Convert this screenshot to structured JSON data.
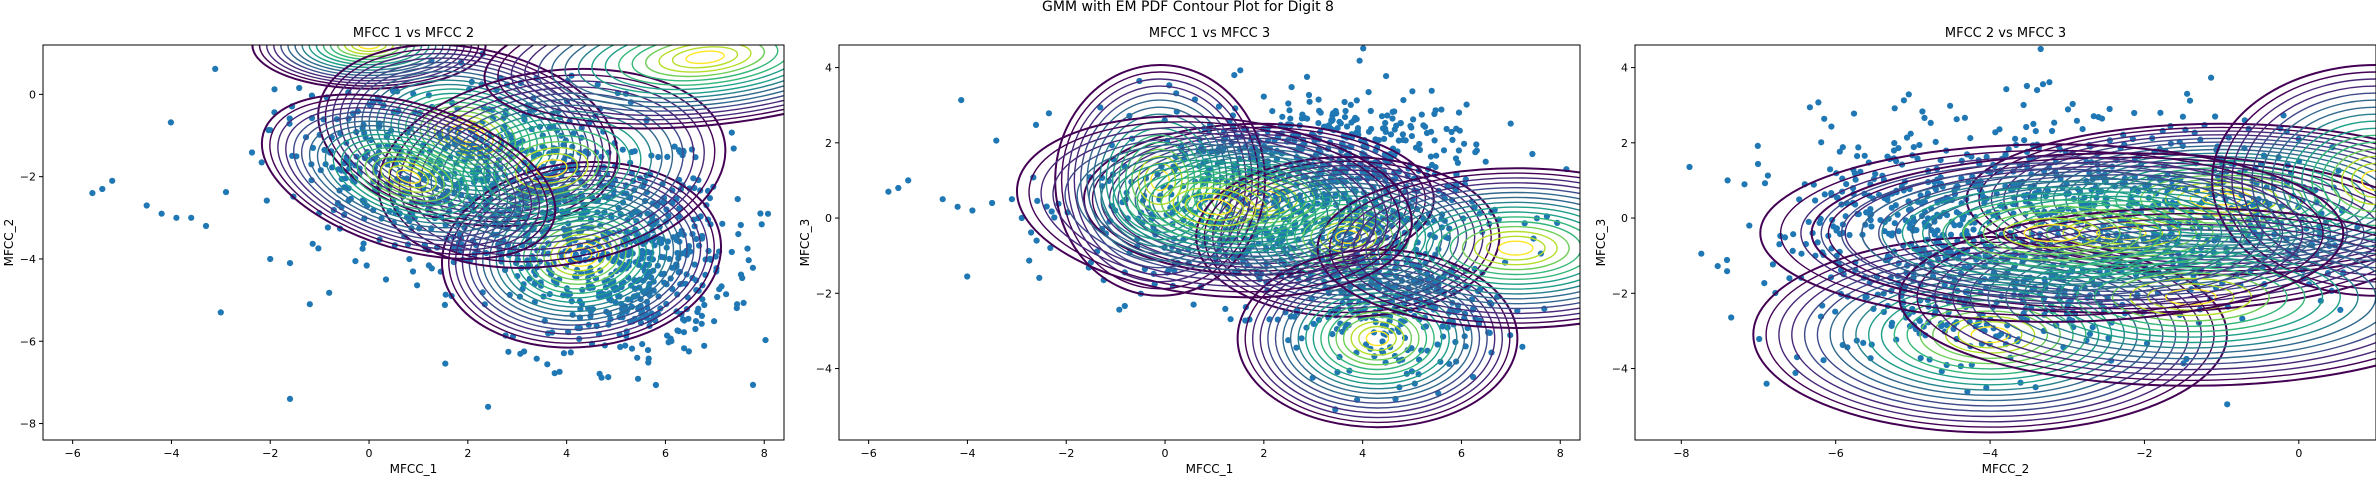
{
  "suptitle": "GMM with EM PDF Contour Plot for Digit 8",
  "colors": {
    "points": "#1f77b4",
    "viridis": [
      "#440154",
      "#482878",
      "#3e4a89",
      "#31688e",
      "#26828e",
      "#1f9e89",
      "#35b779",
      "#6ece58",
      "#b5de2b",
      "#fde725"
    ]
  },
  "chart_data": [
    {
      "type": "scatter",
      "title": "MFCC 1 vs MFCC 2",
      "xlabel": "MFCC_1",
      "ylabel": "MFCC_2",
      "xlim": [
        -6.6,
        8.4
      ],
      "ylim": [
        -8.4,
        1.2
      ],
      "xticks": [
        -6,
        -4,
        -2,
        0,
        2,
        4,
        6,
        8
      ],
      "yticks": [
        -8,
        -6,
        -4,
        -2,
        0
      ],
      "outliers": [
        [
          -5.2,
          -2.1
        ],
        [
          -5.6,
          -2.4
        ],
        [
          -5.4,
          -2.3
        ],
        [
          -4.5,
          -2.7
        ],
        [
          -4.2,
          -2.9
        ],
        [
          -3.9,
          -3.0
        ],
        [
          -3.0,
          -5.3
        ],
        [
          -2.0,
          -4.0
        ],
        [
          -1.6,
          -4.1
        ],
        [
          -1.2,
          -5.1
        ],
        [
          -1.6,
          -7.4
        ],
        [
          -3.6,
          -3.0
        ],
        [
          -3.3,
          -3.2
        ]
      ],
      "cloud": [
        {
          "mx": 3.5,
          "my": -2.6,
          "sx": 1.9,
          "sy": 1.4,
          "r": -0.35,
          "n": 700
        },
        {
          "mx": 5.3,
          "my": -4.6,
          "sx": 1.0,
          "sy": 1.0,
          "r": 0.2,
          "n": 300
        },
        {
          "mx": 0.5,
          "my": -2.0,
          "sx": 1.2,
          "sy": 0.8,
          "r": -0.4,
          "n": 160
        }
      ],
      "components": [
        {
          "mx": 0.0,
          "my": 1.2,
          "sx": 1.0,
          "sy": 0.45,
          "r": 0.0,
          "k": 16
        },
        {
          "mx": 2.0,
          "my": -1.0,
          "sx": 1.3,
          "sy": 0.9,
          "r": -0.2,
          "k": 20
        },
        {
          "mx": 4.3,
          "my": -3.9,
          "sx": 1.2,
          "sy": 0.95,
          "r": 0.1,
          "k": 20
        },
        {
          "mx": 3.7,
          "my": -1.8,
          "sx": 1.5,
          "sy": 1.0,
          "r": 0.15,
          "k": 16
        },
        {
          "mx": 0.8,
          "my": -2.0,
          "sx": 1.3,
          "sy": 0.75,
          "r": -0.3,
          "k": 18
        },
        {
          "mx": 6.8,
          "my": 0.9,
          "sx": 1.9,
          "sy": 0.7,
          "r": 0.1,
          "k": 16
        }
      ]
    },
    {
      "type": "scatter",
      "title": "MFCC 1 vs MFCC 3",
      "xlabel": "MFCC_1",
      "ylabel": "MFCC_3",
      "xlim": [
        -6.6,
        8.4
      ],
      "ylim": [
        -5.9,
        4.6
      ],
      "xticks": [
        -6,
        -4,
        -2,
        0,
        2,
        4,
        6,
        8
      ],
      "yticks": [
        -4,
        -2,
        0,
        2,
        4
      ],
      "outliers": [
        [
          -5.2,
          1.0
        ],
        [
          -5.6,
          0.7
        ],
        [
          -5.4,
          0.8
        ],
        [
          -4.5,
          0.5
        ],
        [
          -4.2,
          0.3
        ],
        [
          -3.9,
          0.2
        ],
        [
          -3.5,
          0.4
        ],
        [
          -3.1,
          0.5
        ],
        [
          -2.6,
          -0.6
        ],
        [
          -2.9,
          0.0
        ]
      ],
      "cloud": [
        {
          "mx": 2.3,
          "my": 0.4,
          "sx": 1.9,
          "sy": 1.3,
          "r": 0.0,
          "n": 650
        },
        {
          "mx": 4.5,
          "my": -1.8,
          "sx": 1.0,
          "sy": 1.2,
          "r": -0.2,
          "n": 330
        },
        {
          "mx": 3.5,
          "my": 2.0,
          "sx": 1.4,
          "sy": 0.7,
          "r": 0.0,
          "n": 180
        }
      ],
      "components": [
        {
          "mx": 1.9,
          "my": 0.5,
          "sx": 1.5,
          "sy": 0.85,
          "r": 0.0,
          "k": 20
        },
        {
          "mx": -0.1,
          "my": 1.0,
          "sx": 0.9,
          "sy": 1.3,
          "r": 0.0,
          "k": 16
        },
        {
          "mx": 3.7,
          "my": -0.5,
          "sx": 1.3,
          "sy": 0.9,
          "r": 0.0,
          "k": 18
        },
        {
          "mx": 4.3,
          "my": -3.2,
          "sx": 1.2,
          "sy": 1.0,
          "r": 0.0,
          "k": 18
        },
        {
          "mx": 7.1,
          "my": -0.8,
          "sx": 1.7,
          "sy": 0.9,
          "r": 0.0,
          "k": 16
        },
        {
          "mx": 1.0,
          "my": 0.3,
          "sx": 1.7,
          "sy": 1.0,
          "r": -0.1,
          "k": 16
        }
      ]
    },
    {
      "type": "scatter",
      "title": "MFCC 2 vs MFCC 3",
      "xlabel": "MFCC_2",
      "ylabel": "MFCC_3",
      "xlim": [
        -8.6,
        1.0
      ],
      "ylim": [
        -5.9,
        4.6
      ],
      "xticks": [
        -8,
        -6,
        -4,
        -2,
        0
      ],
      "yticks": [
        -4,
        -2,
        0,
        2,
        4
      ],
      "outliers": [
        [
          -7.4,
          1.0
        ],
        [
          -6.6,
          -1.6
        ],
        [
          -6.5,
          -3.7
        ],
        [
          -6.4,
          0.9
        ]
      ],
      "cloud": [
        {
          "mx": -2.6,
          "my": 0.2,
          "sx": 1.8,
          "sy": 1.3,
          "r": 0.0,
          "n": 750
        },
        {
          "mx": -4.0,
          "my": -2.2,
          "sx": 1.2,
          "sy": 1.0,
          "r": 0.1,
          "n": 230
        },
        {
          "mx": -5.2,
          "my": 0.0,
          "sx": 0.8,
          "sy": 1.2,
          "r": 0.0,
          "n": 150
        }
      ],
      "components": [
        {
          "mx": -1.0,
          "my": 0.5,
          "sx": 1.4,
          "sy": 0.85,
          "r": 0.0,
          "k": 20
        },
        {
          "mx": -4.0,
          "my": -3.1,
          "sx": 1.3,
          "sy": 1.1,
          "r": 0.0,
          "k": 18
        },
        {
          "mx": -2.3,
          "my": -0.4,
          "sx": 1.7,
          "sy": 0.9,
          "r": 0.0,
          "k": 18
        },
        {
          "mx": 1.0,
          "my": 1.0,
          "sx": 0.9,
          "sy": 1.3,
          "r": 0.0,
          "k": 16
        },
        {
          "mx": -1.4,
          "my": -2.1,
          "sx": 1.6,
          "sy": 1.0,
          "r": 0.0,
          "k": 16
        },
        {
          "mx": -3.2,
          "my": -0.4,
          "sx": 1.6,
          "sy": 1.0,
          "r": 0.0,
          "k": 14
        }
      ]
    }
  ]
}
